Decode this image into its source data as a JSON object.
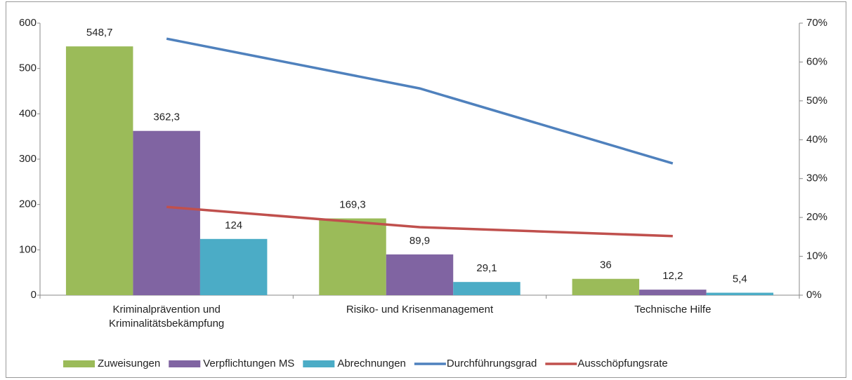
{
  "chart_data": {
    "type": "bar",
    "categories": [
      "Kriminalprävention und Kriminalitätsbekämpfung",
      "Risiko- und Krisenmanagement",
      "Technische Hilfe"
    ],
    "series": [
      {
        "name": "Zuweisungen",
        "color": "#9bbb59",
        "values": [
          548.7,
          169.3,
          36
        ],
        "value_labels": [
          "548,7",
          "169,3",
          "36"
        ]
      },
      {
        "name": "Verpflichtungen MS",
        "color": "#8064a2",
        "values": [
          362.3,
          89.9,
          12.2
        ],
        "value_labels": [
          "362,3",
          "89,9",
          "12,2"
        ]
      },
      {
        "name": "Abrechnungen",
        "color": "#4bacc6",
        "values": [
          124,
          29.1,
          5.4
        ],
        "value_labels": [
          "124",
          "29,1",
          "5,4"
        ]
      },
      {
        "name": "Durchführungsgrad",
        "color": "#4f81bd",
        "type": "line",
        "axis": "y2",
        "values": [
          66,
          53.2,
          33.9
        ]
      },
      {
        "name": "Ausschöpfungsrate",
        "color": "#c0504d",
        "type": "line",
        "axis": "y2",
        "values": [
          22.7,
          17.5,
          15.2
        ]
      }
    ],
    "ylim": [
      0,
      600
    ],
    "yticks": [
      0,
      100,
      200,
      300,
      400,
      500,
      600
    ],
    "y2lim": [
      0,
      70
    ],
    "y2ticks": [
      {
        "value": 0,
        "label": "0%"
      },
      {
        "value": 10,
        "label": "10%"
      },
      {
        "value": 20,
        "label": "20%"
      },
      {
        "value": 30,
        "label": "30%"
      },
      {
        "value": 40,
        "label": "40%"
      },
      {
        "value": 50,
        "label": "50%"
      },
      {
        "value": 60,
        "label": "60%"
      },
      {
        "value": 70,
        "label": "70%"
      }
    ],
    "grid": false,
    "legend": "bottom"
  }
}
